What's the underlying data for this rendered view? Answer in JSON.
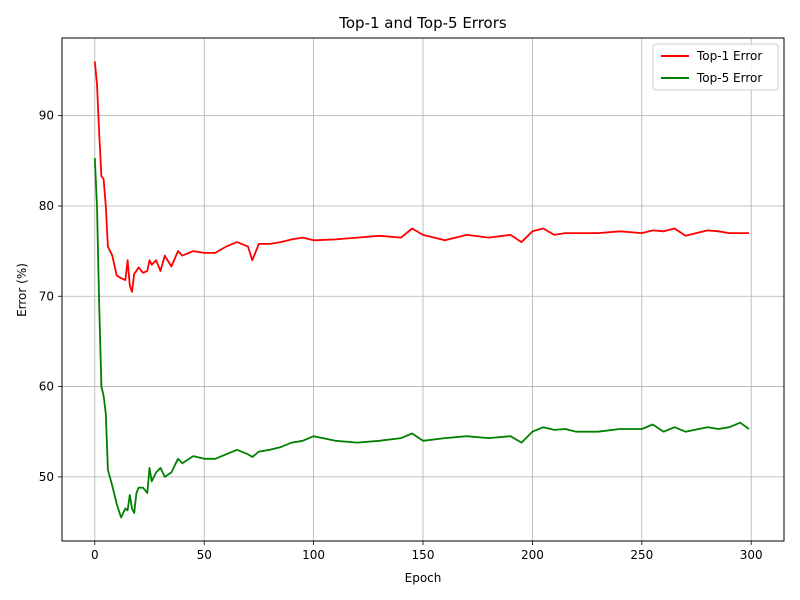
{
  "chart_data": {
    "type": "line",
    "title": "Top-1 and Top-5 Errors",
    "xlabel": "Epoch",
    "ylabel": "Error (%)",
    "xlim": [
      -15,
      315
    ],
    "ylim": [
      42.9,
      98.6
    ],
    "xticks": [
      0,
      50,
      100,
      150,
      200,
      250,
      300
    ],
    "yticks": [
      50,
      60,
      70,
      80,
      90
    ],
    "grid": true,
    "legend_position": "upper right",
    "x": [
      0,
      1,
      2,
      3,
      4,
      5,
      6,
      8,
      10,
      12,
      14,
      15,
      16,
      17,
      18,
      19,
      20,
      22,
      24,
      25,
      26,
      28,
      30,
      32,
      35,
      38,
      40,
      45,
      50,
      55,
      60,
      65,
      70,
      72,
      75,
      80,
      85,
      90,
      95,
      100,
      110,
      120,
      130,
      140,
      145,
      150,
      160,
      170,
      180,
      190,
      195,
      200,
      205,
      210,
      215,
      220,
      230,
      240,
      250,
      255,
      260,
      265,
      270,
      280,
      285,
      290,
      295,
      299
    ],
    "series": [
      {
        "name": "Top-1 Error",
        "color": "#ff0000",
        "values": [
          96,
          93.5,
          88,
          83.3,
          83,
          80,
          75.5,
          74.5,
          72.3,
          72,
          71.8,
          74,
          71.2,
          70.5,
          72.5,
          72.8,
          73.2,
          72.6,
          72.8,
          74,
          73.5,
          74,
          72.8,
          74.5,
          73.3,
          75,
          74.5,
          75,
          74.8,
          74.8,
          75.5,
          76,
          75.5,
          74,
          75.8,
          75.8,
          76,
          76.3,
          76.5,
          76.2,
          76.3,
          76.5,
          76.7,
          76.5,
          77.5,
          76.8,
          76.2,
          76.8,
          76.5,
          76.8,
          76,
          77.2,
          77.5,
          76.8,
          77,
          77,
          77,
          77.2,
          77,
          77.3,
          77.2,
          77.5,
          76.7,
          77.3,
          77.2,
          77,
          77,
          77
        ]
      },
      {
        "name": "Top-5 Error",
        "color": "#008000",
        "values": [
          85.3,
          80,
          69,
          60,
          59,
          57,
          50.8,
          49,
          47,
          45.5,
          46.5,
          46.3,
          48,
          46.5,
          46,
          48.2,
          48.8,
          48.8,
          48.2,
          51,
          49.5,
          50.5,
          51,
          50,
          50.5,
          52,
          51.5,
          52.3,
          52,
          52,
          52.5,
          53,
          52.5,
          52.2,
          52.8,
          53,
          53.3,
          53.8,
          54,
          54.5,
          54,
          53.8,
          54,
          54.3,
          54.8,
          54,
          54.3,
          54.5,
          54.3,
          54.5,
          53.8,
          55,
          55.5,
          55.2,
          55.3,
          55,
          55,
          55.3,
          55.3,
          55.8,
          55,
          55.5,
          55,
          55.5,
          55.3,
          55.5,
          56,
          55.3
        ]
      }
    ]
  }
}
